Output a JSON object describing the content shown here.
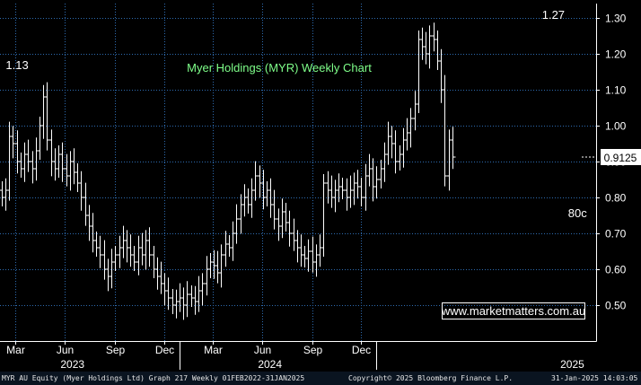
{
  "chart_data": {
    "type": "candlestick",
    "title": "Myer Holdings (MYR) Weekly Chart",
    "watermark": "www.marketmatters.com.au",
    "y_ticks": [
      "1.30",
      "1.20",
      "1.10",
      "1.00",
      "0.90",
      "0.80",
      "0.70",
      "0.60",
      "0.50"
    ],
    "y_tick_values": [
      1.3,
      1.2,
      1.1,
      1.0,
      0.9,
      0.8,
      0.7,
      0.6,
      0.5
    ],
    "ylim": [
      0.4,
      1.34
    ],
    "xlim": [
      "2022-02-01",
      "2025-02-07"
    ],
    "x_ticks": [
      {
        "label": "Mar",
        "date": "2022-03-01"
      },
      {
        "label": "Jun",
        "date": "2022-06-01"
      },
      {
        "label": "Sep",
        "date": "2022-09-01"
      },
      {
        "label": "Dec",
        "date": "2022-12-01"
      },
      {
        "label": "Mar",
        "date": "2023-03-01"
      },
      {
        "label": "Jun",
        "date": "2023-06-01"
      },
      {
        "label": "Sep",
        "date": "2023-09-01"
      },
      {
        "label": "Dec",
        "date": "2023-12-01"
      }
    ],
    "year_labels": [
      {
        "label": "2023",
        "date": "2022-06-15"
      },
      {
        "label": "2024",
        "date": "2023-06-15"
      },
      {
        "label": "2025",
        "date": "2024-12-25"
      }
    ],
    "year_dividers": [
      "2022-12-30",
      "2023-12-29"
    ],
    "last_price": "0.9125",
    "last_price_value": 0.9125,
    "annotations": [
      {
        "text": "1.13",
        "date": "2022-03-08",
        "value": 1.13
      },
      {
        "text": "1.27",
        "date": "2024-11-20",
        "value": 1.27
      },
      {
        "text": "80c",
        "date": "2024-12-28",
        "value": 0.8
      }
    ],
    "grid": true,
    "bar_color": "#ffffff",
    "background": "#000000",
    "grid_color": "#2e6bb0",
    "title_color": "#7fff8a",
    "price_box_color": "#ffffff",
    "weekly_close": [
      0.8,
      0.82,
      0.97,
      0.95,
      0.9,
      0.88,
      0.92,
      0.9,
      0.88,
      0.93,
      1.0,
      1.08,
      0.96,
      0.9,
      0.88,
      0.92,
      0.88,
      0.86,
      0.9,
      0.87,
      0.84,
      0.8,
      0.75,
      0.72,
      0.68,
      0.66,
      0.64,
      0.6,
      0.58,
      0.62,
      0.64,
      0.66,
      0.68,
      0.66,
      0.64,
      0.62,
      0.66,
      0.64,
      0.68,
      0.64,
      0.6,
      0.58,
      0.56,
      0.54,
      0.52,
      0.5,
      0.51,
      0.52,
      0.5,
      0.53,
      0.52,
      0.51,
      0.54,
      0.56,
      0.6,
      0.62,
      0.61,
      0.59,
      0.64,
      0.67,
      0.66,
      0.7,
      0.74,
      0.78,
      0.8,
      0.78,
      0.82,
      0.86,
      0.84,
      0.8,
      0.82,
      0.78,
      0.74,
      0.72,
      0.76,
      0.73,
      0.7,
      0.68,
      0.66,
      0.64,
      0.63,
      0.65,
      0.62,
      0.64,
      0.66,
      0.84,
      0.82,
      0.8,
      0.82,
      0.83,
      0.82,
      0.8,
      0.82,
      0.84,
      0.83,
      0.8,
      0.86,
      0.88,
      0.83,
      0.85,
      0.88,
      0.92,
      0.97,
      0.95,
      0.9,
      0.92,
      0.96,
      0.98,
      1.02,
      1.06,
      1.24,
      1.22,
      1.2,
      1.25,
      1.24,
      1.18,
      1.1,
      0.86,
      0.96,
      0.9125
    ]
  },
  "footer": {
    "left": "MYR AU Equity (Myer Holdings Ltd) Graph 217  Weekly 01FEB2022-31JAN2025",
    "center": "Copyright© 2025 Bloomberg Finance L.P.",
    "right": "31-Jan-2025 14:03:05"
  }
}
